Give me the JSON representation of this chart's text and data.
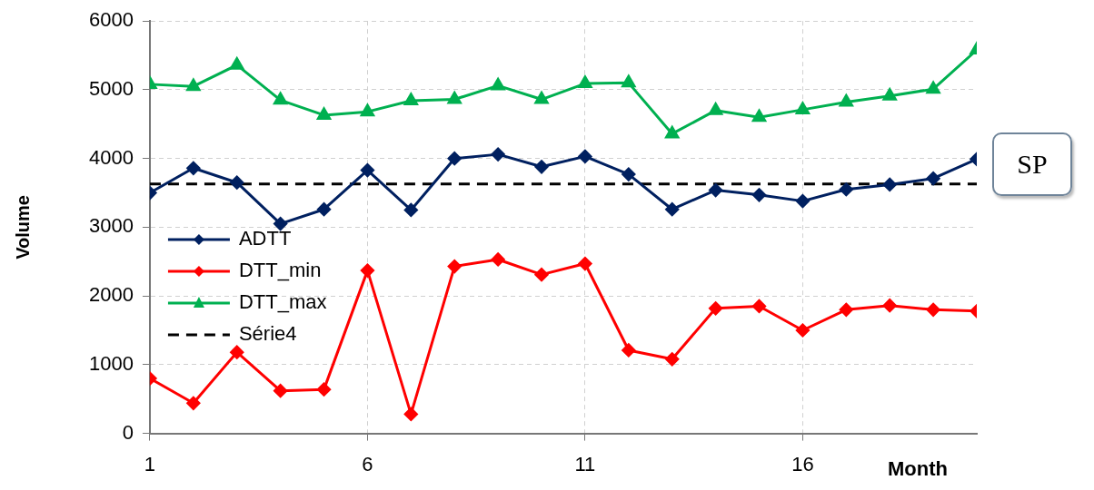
{
  "chart_data": {
    "type": "line",
    "xlabel": "Month",
    "ylabel": "Volume",
    "x": [
      1,
      2,
      3,
      4,
      5,
      6,
      7,
      8,
      9,
      10,
      11,
      12,
      13,
      14,
      15,
      16,
      17,
      18,
      19,
      20
    ],
    "xlim": [
      1,
      20
    ],
    "xticks": [
      1,
      6,
      11,
      16
    ],
    "ylim": [
      0,
      6000
    ],
    "yticks": [
      0,
      1000,
      2000,
      3000,
      4000,
      5000,
      6000
    ],
    "grid": true,
    "legend": "left",
    "annotations": [
      "SP"
    ],
    "series": [
      {
        "name": "ADTT",
        "color": "#002060",
        "marker": "diamond",
        "values": [
          3500,
          3860,
          3650,
          3050,
          3260,
          3830,
          3250,
          4000,
          4060,
          3880,
          4030,
          3770,
          3260,
          3540,
          3470,
          3380,
          3550,
          3620,
          3710,
          3990
        ]
      },
      {
        "name": "DTT_min",
        "color": "#ff0000",
        "marker": "diamond",
        "values": [
          800,
          440,
          1180,
          620,
          640,
          2370,
          280,
          2430,
          2530,
          2310,
          2470,
          1210,
          1080,
          1820,
          1850,
          1500,
          1800,
          1860,
          1800,
          1780
        ]
      },
      {
        "name": "DTT_max",
        "color": "#00b050",
        "marker": "triangle",
        "values": [
          5080,
          5050,
          5360,
          4850,
          4630,
          4680,
          4840,
          4860,
          5060,
          4860,
          5090,
          5100,
          4360,
          4700,
          4600,
          4710,
          4820,
          4910,
          5010,
          5580
        ]
      },
      {
        "name": "Série4",
        "color": "#000000",
        "marker": "none",
        "line_style": "dashed",
        "values": [
          3630,
          3630,
          3630,
          3630,
          3630,
          3630,
          3630,
          3630,
          3630,
          3630,
          3630,
          3630,
          3630,
          3630,
          3630,
          3630,
          3630,
          3630,
          3630,
          3630
        ]
      }
    ]
  }
}
